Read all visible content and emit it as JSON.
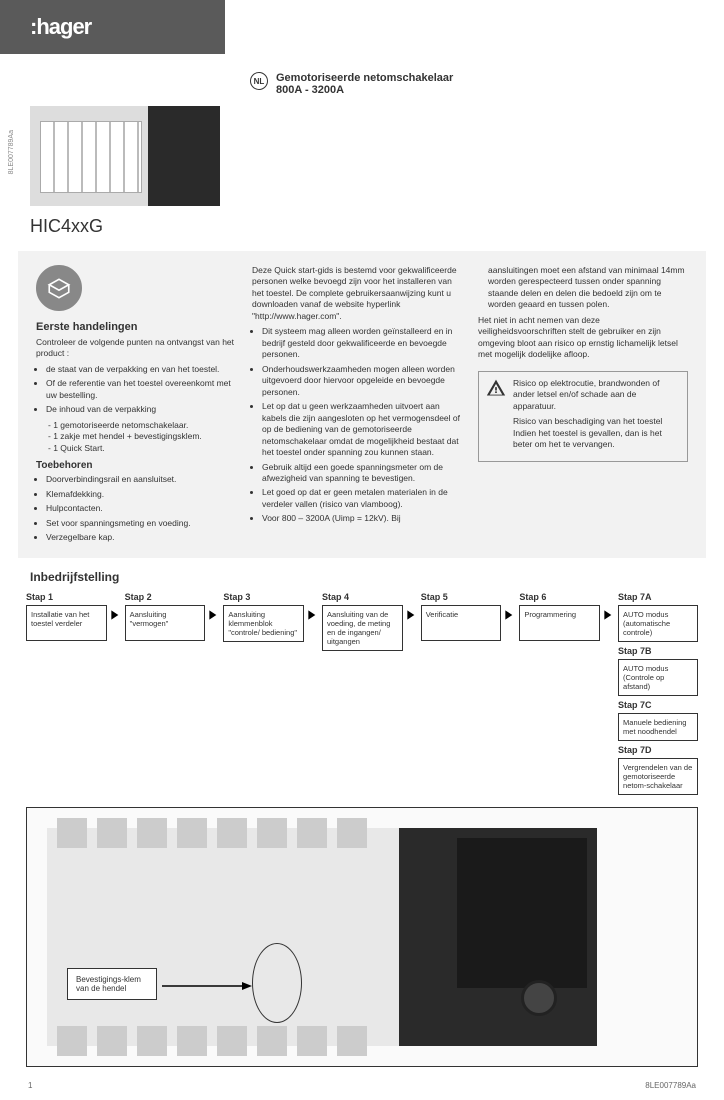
{
  "logo": ":hager",
  "sidecode": "8LE007789Aa",
  "header": {
    "lang": "NL",
    "title": "Gemotoriseerde netomschakelaar",
    "range": "800A - 3200A"
  },
  "model": "HIC4xxG",
  "col1": {
    "h1": "Eerste handelingen",
    "intro": "Controleer de volgende punten na ontvangst van het product :",
    "bullets1": [
      "de staat van de verpakking en van het toestel.",
      "Of de referentie van het toestel overeenkomt met uw bestelling.",
      "De inhoud van de verpakking"
    ],
    "sub_bullets": [
      "- 1 gemotoriseerde netomschakelaar.",
      "- 1 zakje met hendel + bevestigingsklem.",
      "- 1 Quick Start."
    ],
    "h2": "Toebehoren",
    "bullets2": [
      "Doorverbindingsrail en aansluitset.",
      "Klemafdekking.",
      "Hulpcontacten.",
      "Set voor spanningsmeting en voeding.",
      "Verzegelbare kap."
    ]
  },
  "col2": {
    "intro": "Deze Quick start-gids is bestemd voor gekwalificeerde personen welke bevoegd zijn voor het installeren van het toestel. De complete gebruikersaanwijzing kunt u downloaden vanaf de website hyperlink \"http://www.hager.com\".",
    "bullets": [
      "Dit systeem mag alleen worden geïnstalleerd en in bedrijf gesteld door gekwalificeerde en bevoegde personen.",
      "Onderhoudswerkzaamheden mogen alleen worden uitgevoerd door hiervoor opgeleide en bevoegde personen.",
      "Let op dat u geen werkzaamheden uitvoert aan kabels die zijn aangesloten op het vermogensdeel of op de bediening van de gemotoriseerde netomschakelaar omdat de mogelijkheid bestaat dat het toestel onder spanning zou kunnen staan.",
      "Gebruik altijd een goede spanningsmeter om de afwezigheid van spanning te bevestigen.",
      "Let goed op dat er geen metalen materialen in de verdeler vallen (risico van vlamboog).",
      "Voor 800 – 3200A (Uimp = 12kV). Bij"
    ]
  },
  "col3": {
    "cont": "aansluitingen moet een afstand van minimaal 14mm worden gerespecteerd tussen onder spanning staande delen en delen die bedoeld zijn om te worden geaard en tussen polen.",
    "para2": "Het niet in acht nemen van deze veiligheidsvoorschriften stelt de gebruiker en zijn omgeving bloot aan risico op ernstig lichamelijk letsel met mogelijk dodelijke afloop.",
    "warn1": "Risico op elektrocutie, brandwonden of ander letsel en/of schade aan de apparatuur.",
    "warn2": "Risico van beschadiging van het toestel Indien het toestel is gevallen, dan is het beter om het te vervangen."
  },
  "inbed": "Inbedrijfstelling",
  "steps": [
    {
      "label": "Stap 1",
      "text": "Installatie van het toestel verdeler"
    },
    {
      "label": "Stap 2",
      "text": "Aansluiting \"vermogen\""
    },
    {
      "label": "Stap 3",
      "text": "Aansluiting klemmenblok \"controle/ bediening\""
    },
    {
      "label": "Stap 4",
      "text": "Aansluiting van de voeding, de meting en de ingangen/ uitgangen"
    },
    {
      "label": "Stap 5",
      "text": "Verificatie"
    },
    {
      "label": "Stap 6",
      "text": "Programmering"
    }
  ],
  "steps7": [
    {
      "label": "Stap 7A",
      "text": "AUTO modus (automatische controle)"
    },
    {
      "label": "Stap 7B",
      "text": "AUTO modus (Controle op afstand)"
    },
    {
      "label": "Stap 7C",
      "text": "Manuele bediening met noodhendel"
    },
    {
      "label": "Stap 7D",
      "text": "Vergrendelen van de gemotoriseerde netom-schakelaar"
    }
  ],
  "callout": "Bevestigings-klem van de hendel",
  "footer": {
    "page": "1",
    "code": "8LE007789Aa"
  }
}
